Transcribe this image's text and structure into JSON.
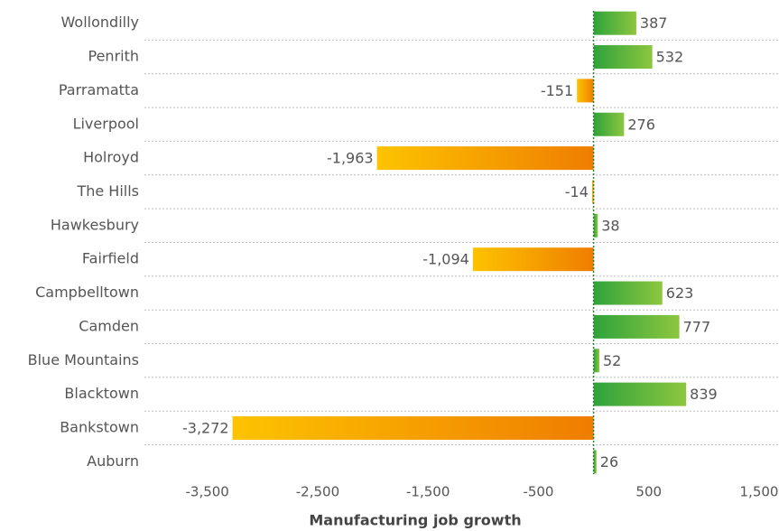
{
  "chart_data": {
    "type": "bar",
    "orientation": "horizontal",
    "x_label": "Manufacturing job growth",
    "categories": [
      "Wollondilly",
      "Penrith",
      "Parramatta",
      "Liverpool",
      "Holroyd",
      "The Hills",
      "Hawkesbury",
      "Fairfield",
      "Campbelltown",
      "Camden",
      "Blue Mountains",
      "Blacktown",
      "Bankstown",
      "Auburn"
    ],
    "values": [
      387,
      532,
      -151,
      276,
      -1963,
      -14,
      38,
      -1094,
      623,
      777,
      52,
      839,
      -3272,
      26
    ],
    "value_labels": [
      "387",
      "532",
      "-151",
      "276",
      "-1,963",
      "-14",
      "38",
      "-1,094",
      "623",
      "777",
      "52",
      "839",
      "-3,272",
      "26"
    ],
    "positive_colors": [
      "#2ea33b",
      "#8dc63f"
    ],
    "negative_colors": [
      "#fdc300",
      "#ef7d00"
    ],
    "xlim": [
      -4070,
      1680
    ],
    "xticks": [
      {
        "value": -3500,
        "label": "-3,500"
      },
      {
        "value": -2500,
        "label": "-2,500"
      },
      {
        "value": -1500,
        "label": "-1,500"
      },
      -500,
      500,
      {
        "value": 1500,
        "label": "1,500"
      }
    ],
    "grid": true
  }
}
